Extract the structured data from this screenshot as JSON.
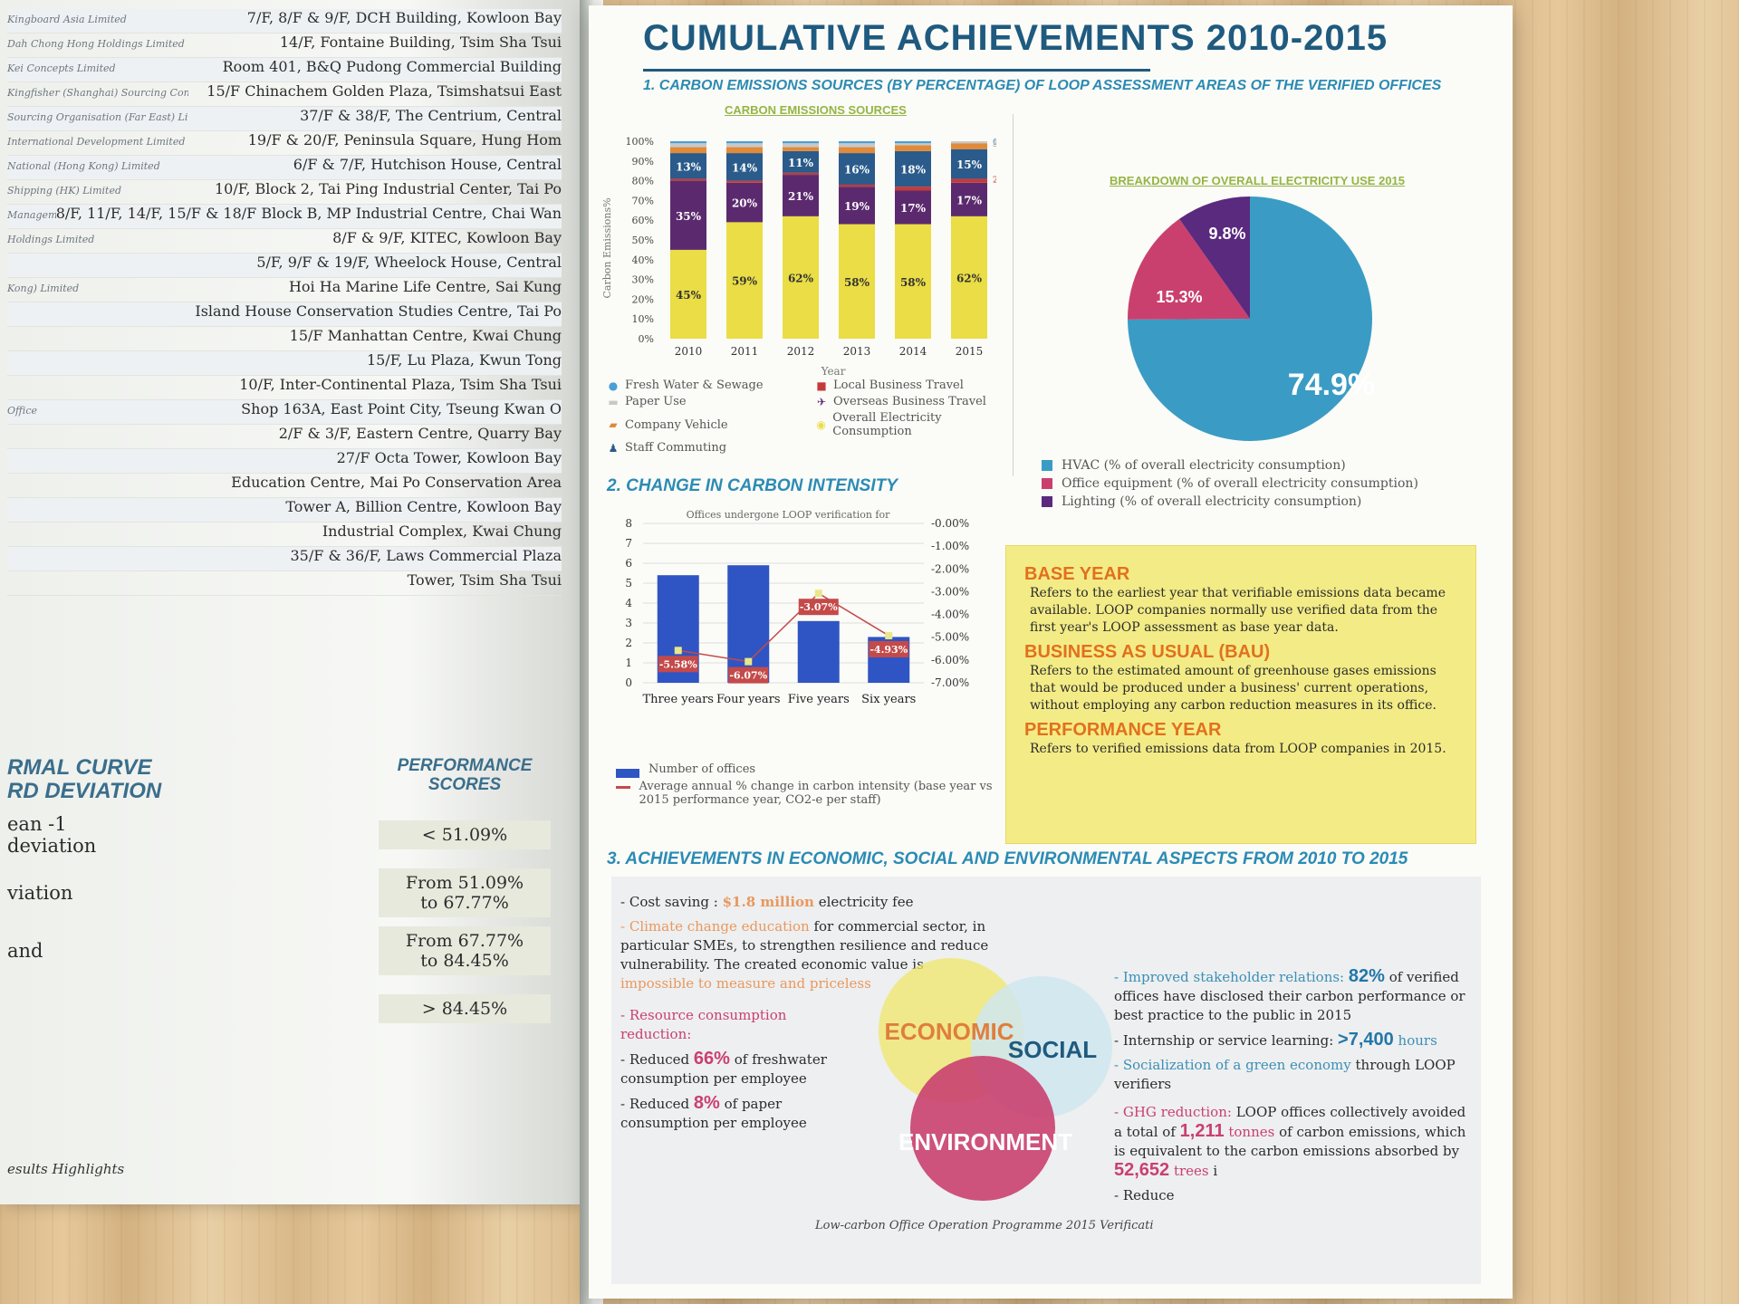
{
  "left_page": {
    "addresses": [
      {
        "company": "Kingboard Asia Limited",
        "address": "7/F, 8/F & 9/F, DCH Building, Kowloon Bay"
      },
      {
        "company": "Dah Chong Hong Holdings Limited",
        "address": "14/F, Fontaine Building, Tsim Sha Tsui"
      },
      {
        "company": "Kei Concepts Limited",
        "address": "Room 401, B&Q Pudong Commercial Building"
      },
      {
        "company": "Kingfisher (Shanghai) Sourcing Consultancy Co. Ltd.",
        "address": "15/F Chinachem Golden Plaza, Tsimshatsui East"
      },
      {
        "company": "Sourcing Organisation (Far East) Limited",
        "address": "37/F & 38/F, The Centrium, Central"
      },
      {
        "company": "International Development Limited",
        "address": "19/F & 20/F, Peninsula Square, Hung Hom"
      },
      {
        "company": "National (Hong Kong) Limited",
        "address": "6/F & 7/F, Hutchison House, Central"
      },
      {
        "company": "Shipping (HK) Limited",
        "address": "10/F, Block 2, Tai Ping Industrial Center, Tai Po"
      },
      {
        "company": "Management Limited",
        "address": "8/F, 11/F, 14/F, 15/F & 18/F Block B, MP Industrial Centre, Chai Wan"
      },
      {
        "company": "Holdings Limited",
        "address": "8/F & 9/F, KITEC, Kowloon Bay"
      },
      {
        "company": "",
        "address": "5/F, 9/F & 19/F, Wheelock House, Central"
      },
      {
        "company": "Kong) Limited",
        "address": "Hoi Ha Marine Life Centre, Sai Kung"
      },
      {
        "company": "",
        "address": "Island House Conservation Studies Centre, Tai Po"
      },
      {
        "company": "",
        "address": "15/F Manhattan Centre, Kwai Chung"
      },
      {
        "company": "",
        "address": "15/F, Lu Plaza, Kwun Tong"
      },
      {
        "company": "",
        "address": "10/F, Inter-Continental Plaza, Tsim Sha Tsui"
      },
      {
        "company": "Office",
        "address": "Shop 163A, East Point City, Tseung Kwan O"
      },
      {
        "company": "",
        "address": "2/F & 3/F, Eastern Centre, Quarry Bay"
      },
      {
        "company": "",
        "address": "27/F Octa Tower, Kowloon Bay"
      },
      {
        "company": "",
        "address": "Education Centre, Mai Po Conservation Area"
      },
      {
        "company": "",
        "address": "Tower A, Billion Centre, Kowloon Bay"
      },
      {
        "company": "",
        "address": "Industrial Complex, Kwai Chung"
      },
      {
        "company": "",
        "address": "35/F & 36/F, Laws Commercial Plaza"
      },
      {
        "company": "",
        "address": "Tower, Tsim Sha Tsui"
      }
    ],
    "curve_title": "RMAL CURVE\nRD DEVIATION",
    "score_header": "PERFORMANCE\nSCORES",
    "curve_rows": [
      {
        "label": "ean -1\ndeviation",
        "score": "< 51.09%"
      },
      {
        "label": "viation",
        "score": "From 51.09%\nto 67.77%"
      },
      {
        "label": "and",
        "score": "From 67.77%\nto 84.45%"
      },
      {
        "label": "",
        "score": "> 84.45%"
      }
    ],
    "footer": "esults Highlights"
  },
  "right_page": {
    "title": "CUMULATIVE ACHIEVEMENTS 2010-2015",
    "section1_title": "1. CARBON EMISSIONS SOURCES (BY PERCENTAGE) OF LOOP ASSESSMENT AREAS OF THE VERIFIED OFFICES",
    "chart1_subtitle": "CARBON EMISSIONS SOURCES",
    "chart1_legend": [
      {
        "icon": "water-drop-icon",
        "label": "Fresh Water & Sewage",
        "color": "#4a9fd4"
      },
      {
        "icon": "bus-icon",
        "label": "Local Business Travel",
        "color": "#c43a3a"
      },
      {
        "icon": "paper-icon",
        "label": "Paper Use",
        "color": "#c8c8c8"
      },
      {
        "icon": "plane-icon",
        "label": "Overseas Business Travel",
        "color": "#5b2a6e"
      },
      {
        "icon": "car-icon",
        "label": "Company Vehicle",
        "color": "#e08a3a"
      },
      {
        "icon": "bulb-icon",
        "label": "Overall Electricity Consumption",
        "color": "#eadd45"
      },
      {
        "icon": "person-icon",
        "label": "Staff Commuting",
        "color": "#2a5b8a"
      }
    ],
    "pie_subtitle": "BREAKDOWN OF OVERALL ELECTRICITY USE 2015",
    "pie_legend": [
      {
        "label": "HVAC (% of overall electricity consumption)",
        "color": "#3a9cc4"
      },
      {
        "label": "Office equipment (% of overall electricity consumption)",
        "color": "#c9406f"
      },
      {
        "label": "Lighting (% of overall electricity consumption)",
        "color": "#5a2a7e"
      }
    ],
    "section2_title": "2. CHANGE IN CARBON INTENSITY",
    "chart2_legend": [
      {
        "label": "Number of offices",
        "color": "#2f55c4"
      },
      {
        "label": "Average annual % change in carbon intensity (base year vs 2015 performance year, CO2-e per staff)",
        "color": "#c44a4a"
      }
    ],
    "definitions": [
      {
        "term": "BASE YEAR",
        "text": "Refers to the earliest year that verifiable emissions data became available. LOOP companies normally use verified data from the first year's LOOP assessment as base year data."
      },
      {
        "term": "BUSINESS AS USUAL (BAU)",
        "text": "Refers to the estimated amount of greenhouse gases emissions that would be produced under a business' current operations, without employing any carbon reduction measures in its office."
      },
      {
        "term": "PERFORMANCE YEAR",
        "text": "Refers to verified emissions data from LOOP companies in 2015."
      }
    ],
    "section3_title": "3. ACHIEVEMENTS IN ECONOMIC, SOCIAL AND ENVIRONMENTAL ASPECTS FROM 2010 TO 2015",
    "achievements_left": {
      "cost_label": "- Cost saving : ",
      "cost_value": "$1.8 million",
      "cost_rest": " electricity fee",
      "climate_label": "- Climate change education",
      "climate_text": " for commercial sector, in particular SMEs, to strengthen resilience and reduce vulnerability. The created economic value is ",
      "climate_end": "impossible to measure and priceless",
      "resource_label": "- Resource consumption reduction:",
      "water_a": "- Reduced ",
      "water_value": "66%",
      "water_b": " of freshwater consumption per employee",
      "paper_a": "- Reduced ",
      "paper_value": "8%",
      "paper_b": " of paper consumption per employee"
    },
    "achievements_right": {
      "stake_label": "- Improved stakeholder relations:",
      "stake_value": "82%",
      "stake_text": " of verified offices have disclosed their carbon performance or best practice to the public in 2015",
      "intern_text": "- Internship or service learning: ",
      "intern_value": ">7,400",
      "intern_unit": " hours",
      "social_label": "- Socialization of a green economy",
      "social_text": " through LOOP verifiers",
      "ghg_label": "- GHG reduction:",
      "ghg_text": " LOOP offices collectively avoided a total of ",
      "ghg_value": "1,211",
      "ghg_unit": " tonnes",
      "ghg_text2": " of carbon emissions, which is equivalent to the carbon emissions absorbed by ",
      "trees_value": "52,652",
      "trees_unit": " trees",
      "ghg_more": " i",
      "reduce_text": "- Reduce"
    },
    "venn": {
      "economic": "ECONOMIC",
      "social": "SOCIAL",
      "environment": "ENVIRONMENT"
    },
    "footer": "Low-carbon Office Operation Programme 2015 Verificati"
  },
  "chart_data": [
    {
      "type": "bar",
      "stacked": true,
      "title": "CARBON EMISSIONS SOURCES",
      "xlabel": "Year",
      "ylabel": "Carbon Emissions%",
      "categories": [
        "2010",
        "2011",
        "2012",
        "2013",
        "2014",
        "2015"
      ],
      "ylim": [
        0,
        100
      ],
      "ytick_labels": [
        "0%",
        "10%",
        "20%",
        "30%",
        "40%",
        "50%",
        "60%",
        "70%",
        "80%",
        "90%",
        "100%"
      ],
      "series": [
        {
          "name": "Overall Electricity Consumption",
          "values": [
            45,
            59,
            62,
            58,
            58,
            62
          ],
          "color": "#eadd45",
          "labels": [
            "45%",
            "59%",
            "62%",
            "58%",
            "58%",
            "62%"
          ]
        },
        {
          "name": "Overseas Business Travel",
          "values": [
            35,
            20,
            21,
            19,
            17,
            17
          ],
          "color": "#5b2a6e",
          "labels": [
            "35%",
            "20%",
            "21%",
            "19%",
            "17%",
            "17%"
          ]
        },
        {
          "name": "Local Business Travel",
          "values": [
            1,
            1,
            1,
            1,
            2,
            2
          ],
          "color": "#c43a3a",
          "labels": [
            "",
            "",
            "",
            "",
            "",
            "2%"
          ]
        },
        {
          "name": "Staff Commuting",
          "values": [
            13,
            14,
            11,
            16,
            18,
            15
          ],
          "color": "#2a5b8a",
          "labels": [
            "13%",
            "14%",
            "11%",
            "16%",
            "18%",
            "15%"
          ]
        },
        {
          "name": "Company Vehicle",
          "values": [
            3,
            3,
            2,
            3,
            3,
            3
          ],
          "color": "#e08a3a",
          "labels": [
            "",
            "",
            "",
            "",
            "",
            "3%"
          ]
        },
        {
          "name": "Paper Use",
          "values": [
            2,
            2,
            2,
            2,
            1,
            1
          ],
          "color": "#c8c8c8",
          "labels": [
            "",
            "",
            "",
            "",
            "",
            "1%"
          ]
        },
        {
          "name": "Fresh Water & Sewage",
          "values": [
            1,
            1,
            1,
            1,
            1,
            0
          ],
          "color": "#4a9fd4",
          "labels": [
            "",
            "",
            "",
            "",
            "",
            "0%"
          ]
        }
      ]
    },
    {
      "type": "pie",
      "title": "BREAKDOWN OF OVERALL ELECTRICITY USE 2015",
      "slices": [
        {
          "name": "HVAC",
          "value": 74.9,
          "label": "74.9%",
          "color": "#3a9cc4"
        },
        {
          "name": "Office equipment",
          "value": 15.3,
          "label": "15.3%",
          "color": "#c9406f"
        },
        {
          "name": "Lighting",
          "value": 9.8,
          "label": "9.8%",
          "color": "#5a2a7e"
        }
      ]
    },
    {
      "type": "bar",
      "title": "2. CHANGE IN CARBON INTENSITY",
      "subtitle": "Offices undergone LOOP verification for",
      "categories": [
        "Three years",
        "Four years",
        "Five years",
        "Six years"
      ],
      "ylim": [
        0,
        8
      ],
      "ytick_labels": [
        "0",
        "1",
        "2",
        "3",
        "4",
        "5",
        "6",
        "7",
        "8"
      ],
      "y2lim": [
        0,
        -7
      ],
      "y2tick_labels": [
        "-0.00%",
        "-1.00%",
        "-2.00%",
        "-3.00%",
        "-4.00%",
        "-5.00%",
        "-6.00%",
        "-7.00%"
      ],
      "series": [
        {
          "name": "Number of offices",
          "type": "bar",
          "values": [
            5.4,
            5.9,
            3.1,
            2.3
          ],
          "color": "#2f55c4"
        },
        {
          "name": "Average annual % change in carbon intensity",
          "type": "line",
          "axis": "right",
          "values": [
            -5.58,
            -6.07,
            -3.07,
            -4.93
          ],
          "labels": [
            "-5.58%",
            "-6.07%",
            "-3.07%",
            "-4.93%"
          ],
          "color": "#c44a4a"
        }
      ]
    }
  ]
}
